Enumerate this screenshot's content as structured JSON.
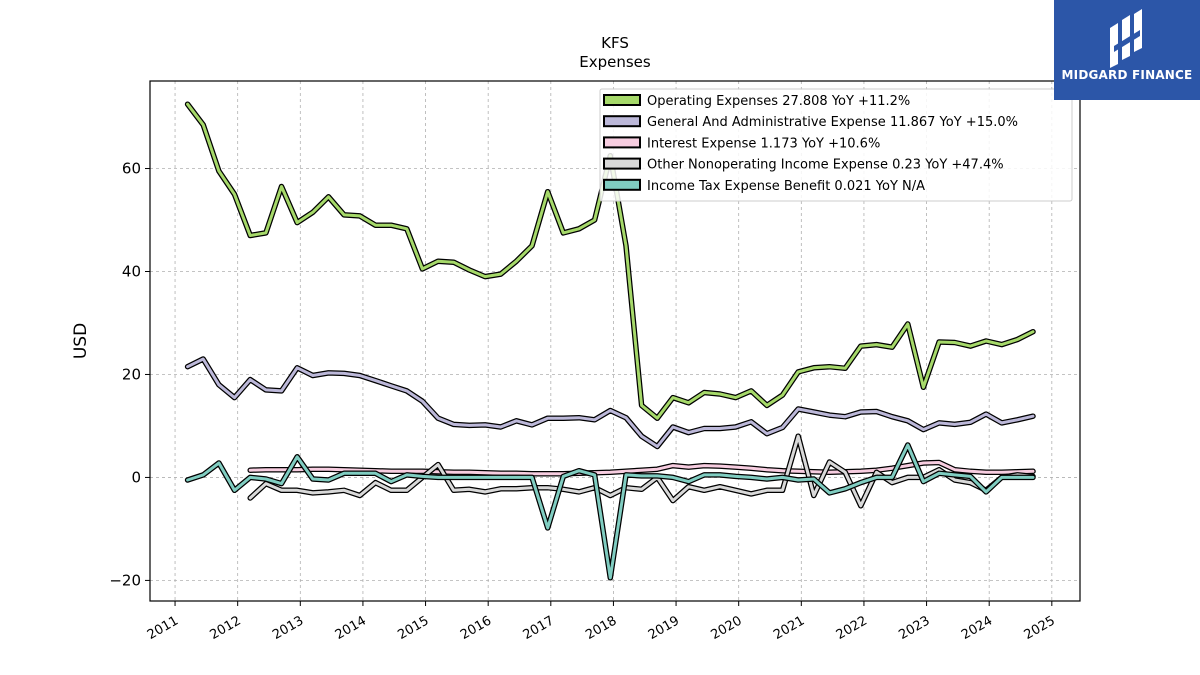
{
  "chart_data": {
    "type": "line",
    "title": "KFS",
    "subtitle": "Expenses",
    "ylabel": "USD",
    "xlabel": "",
    "ylim": [
      -24,
      77
    ],
    "xlim": [
      2010.6,
      2025.45
    ],
    "yticks": [
      -20,
      0,
      20,
      40,
      60
    ],
    "ytick_labels": [
      "−20",
      "0",
      "20",
      "40",
      "60"
    ],
    "xticks": [
      2011,
      2012,
      2013,
      2014,
      2015,
      2016,
      2017,
      2018,
      2019,
      2020,
      2021,
      2022,
      2023,
      2024,
      2025
    ],
    "xtick_labels": [
      "2011",
      "2012",
      "2013",
      "2014",
      "2015",
      "2016",
      "2017",
      "2018",
      "2019",
      "2020",
      "2021",
      "2022",
      "2023",
      "2024",
      "2025"
    ],
    "grid": true,
    "legend_position": "top-right",
    "series": [
      {
        "name": "Operating Expenses",
        "legend": "Operating Expenses  27.808 YoY +11.2%",
        "color": "#a6d96a",
        "points": [
          [
            2011.2,
            72.5
          ],
          [
            2011.45,
            68.5
          ],
          [
            2011.7,
            59.5
          ],
          [
            2011.95,
            55
          ],
          [
            2012.2,
            47
          ],
          [
            2012.45,
            47.5
          ],
          [
            2012.7,
            56.5
          ],
          [
            2012.95,
            49.5
          ],
          [
            2013.2,
            51.5
          ],
          [
            2013.45,
            54.5
          ],
          [
            2013.7,
            51
          ],
          [
            2013.95,
            50.8
          ],
          [
            2014.2,
            49
          ],
          [
            2014.45,
            49
          ],
          [
            2014.7,
            48.3
          ],
          [
            2014.95,
            40.5
          ],
          [
            2015.2,
            42
          ],
          [
            2015.45,
            41.8
          ],
          [
            2015.7,
            40.3
          ],
          [
            2015.95,
            39
          ],
          [
            2016.2,
            39.5
          ],
          [
            2016.45,
            42
          ],
          [
            2016.7,
            45
          ],
          [
            2016.95,
            55.5
          ],
          [
            2017.2,
            47.5
          ],
          [
            2017.45,
            48.3
          ],
          [
            2017.7,
            50
          ],
          [
            2017.95,
            62.5
          ],
          [
            2018.2,
            45
          ],
          [
            2018.45,
            14
          ],
          [
            2018.7,
            11.5
          ],
          [
            2018.95,
            15.5
          ],
          [
            2019.2,
            14.5
          ],
          [
            2019.45,
            16.5
          ],
          [
            2019.7,
            16.2
          ],
          [
            2019.95,
            15.5
          ],
          [
            2020.2,
            16.8
          ],
          [
            2020.45,
            14
          ],
          [
            2020.7,
            16
          ],
          [
            2020.95,
            20.5
          ],
          [
            2021.2,
            21.3
          ],
          [
            2021.45,
            21.5
          ],
          [
            2021.7,
            21.2
          ],
          [
            2021.95,
            25.5
          ],
          [
            2022.2,
            25.8
          ],
          [
            2022.45,
            25.3
          ],
          [
            2022.7,
            29.8
          ],
          [
            2022.95,
            17.5
          ],
          [
            2023.2,
            26.3
          ],
          [
            2023.45,
            26.2
          ],
          [
            2023.7,
            25.5
          ],
          [
            2023.95,
            26.5
          ],
          [
            2024.2,
            25.8
          ],
          [
            2024.45,
            26.8
          ],
          [
            2024.7,
            28.3
          ]
        ]
      },
      {
        "name": "General And Administrative Expense",
        "legend": "General And Administrative Expense  11.867 YoY +15.0%",
        "color": "#bcb8d9",
        "points": [
          [
            2011.2,
            21.5
          ],
          [
            2011.45,
            23
          ],
          [
            2011.7,
            18
          ],
          [
            2011.95,
            15.5
          ],
          [
            2012.2,
            19
          ],
          [
            2012.45,
            17
          ],
          [
            2012.7,
            16.8
          ],
          [
            2012.95,
            21.3
          ],
          [
            2013.2,
            19.8
          ],
          [
            2013.45,
            20.3
          ],
          [
            2013.7,
            20.2
          ],
          [
            2013.95,
            19.8
          ],
          [
            2014.2,
            18.8
          ],
          [
            2014.45,
            17.8
          ],
          [
            2014.7,
            16.8
          ],
          [
            2014.95,
            14.8
          ],
          [
            2015.2,
            11.5
          ],
          [
            2015.45,
            10.3
          ],
          [
            2015.7,
            10.1
          ],
          [
            2015.95,
            10.2
          ],
          [
            2016.2,
            9.8
          ],
          [
            2016.45,
            11
          ],
          [
            2016.7,
            10.2
          ],
          [
            2016.95,
            11.5
          ],
          [
            2017.2,
            11.5
          ],
          [
            2017.45,
            11.6
          ],
          [
            2017.7,
            11.2
          ],
          [
            2017.95,
            13
          ],
          [
            2018.2,
            11.6
          ],
          [
            2018.45,
            8
          ],
          [
            2018.7,
            6
          ],
          [
            2018.95,
            9.8
          ],
          [
            2019.2,
            8.7
          ],
          [
            2019.45,
            9.5
          ],
          [
            2019.7,
            9.5
          ],
          [
            2019.95,
            9.8
          ],
          [
            2020.2,
            10.8
          ],
          [
            2020.45,
            8.5
          ],
          [
            2020.7,
            9.7
          ],
          [
            2020.95,
            13.3
          ],
          [
            2021.2,
            12.7
          ],
          [
            2021.45,
            12.1
          ],
          [
            2021.7,
            11.8
          ],
          [
            2021.95,
            12.7
          ],
          [
            2022.2,
            12.8
          ],
          [
            2022.45,
            11.8
          ],
          [
            2022.7,
            11
          ],
          [
            2022.95,
            9.3
          ],
          [
            2023.2,
            10.6
          ],
          [
            2023.45,
            10.3
          ],
          [
            2023.7,
            10.7
          ],
          [
            2023.95,
            12.3
          ],
          [
            2024.2,
            10.6
          ],
          [
            2024.45,
            11.2
          ],
          [
            2024.7,
            11.9
          ]
        ]
      },
      {
        "name": "Interest Expense",
        "legend": "Interest Expense  1.173 YoY +10.6%",
        "color": "#f7cde0",
        "points": [
          [
            2012.2,
            1.4
          ],
          [
            2012.45,
            1.5
          ],
          [
            2012.7,
            1.5
          ],
          [
            2012.95,
            1.5
          ],
          [
            2013.2,
            1.6
          ],
          [
            2013.45,
            1.6
          ],
          [
            2013.7,
            1.5
          ],
          [
            2013.95,
            1.4
          ],
          [
            2014.2,
            1.3
          ],
          [
            2014.45,
            1.2
          ],
          [
            2014.7,
            1.2
          ],
          [
            2014.95,
            1.2
          ],
          [
            2015.2,
            1.1
          ],
          [
            2015.45,
            1
          ],
          [
            2015.7,
            1
          ],
          [
            2015.95,
            0.9
          ],
          [
            2016.2,
            0.8
          ],
          [
            2016.45,
            0.8
          ],
          [
            2016.7,
            0.7
          ],
          [
            2016.95,
            0.7
          ],
          [
            2017.2,
            0.7
          ],
          [
            2017.45,
            0.8
          ],
          [
            2017.7,
            0.9
          ],
          [
            2017.95,
            1
          ],
          [
            2018.2,
            1.2
          ],
          [
            2018.45,
            1.4
          ],
          [
            2018.7,
            1.6
          ],
          [
            2018.95,
            2.3
          ],
          [
            2019.2,
            2
          ],
          [
            2019.45,
            2.3
          ],
          [
            2019.7,
            2.2
          ],
          [
            2019.95,
            2
          ],
          [
            2020.2,
            1.8
          ],
          [
            2020.45,
            1.5
          ],
          [
            2020.7,
            1.3
          ],
          [
            2020.95,
            1.2
          ],
          [
            2021.2,
            1.1
          ],
          [
            2021.45,
            1
          ],
          [
            2021.7,
            1.1
          ],
          [
            2021.95,
            1.2
          ],
          [
            2022.2,
            1.4
          ],
          [
            2022.45,
            1.8
          ],
          [
            2022.7,
            2.3
          ],
          [
            2022.95,
            2.8
          ],
          [
            2023.2,
            2.9
          ],
          [
            2023.45,
            1.5
          ],
          [
            2023.7,
            1.2
          ],
          [
            2023.95,
            1
          ],
          [
            2024.2,
            1
          ],
          [
            2024.45,
            1.1
          ],
          [
            2024.7,
            1.2
          ]
        ]
      },
      {
        "name": "Other Nonoperating Income Expense",
        "legend": "Other Nonoperating Income Expense  0.23 YoY +47.4%",
        "color": "#d9d9d9",
        "points": [
          [
            2012.2,
            -4
          ],
          [
            2012.45,
            -1.2
          ],
          [
            2012.7,
            -2.5
          ],
          [
            2012.95,
            -2.5
          ],
          [
            2013.2,
            -3
          ],
          [
            2013.45,
            -2.8
          ],
          [
            2013.7,
            -2.5
          ],
          [
            2013.95,
            -3.5
          ],
          [
            2014.2,
            -1
          ],
          [
            2014.45,
            -2.5
          ],
          [
            2014.7,
            -2.5
          ],
          [
            2014.95,
            0
          ],
          [
            2015.2,
            2.5
          ],
          [
            2015.45,
            -2.5
          ],
          [
            2015.7,
            -2.3
          ],
          [
            2015.95,
            -2.8
          ],
          [
            2016.2,
            -2.2
          ],
          [
            2016.45,
            -2.2
          ],
          [
            2016.7,
            -2
          ],
          [
            2016.95,
            -2
          ],
          [
            2017.2,
            -2.3
          ],
          [
            2017.45,
            -2.8
          ],
          [
            2017.7,
            -2
          ],
          [
            2017.95,
            -3.5
          ],
          [
            2018.2,
            -2
          ],
          [
            2018.45,
            -2.3
          ],
          [
            2018.7,
            0
          ],
          [
            2018.95,
            -4.5
          ],
          [
            2019.2,
            -1.8
          ],
          [
            2019.45,
            -2.5
          ],
          [
            2019.7,
            -1.8
          ],
          [
            2019.95,
            -2.5
          ],
          [
            2020.2,
            -3.2
          ],
          [
            2020.45,
            -2.5
          ],
          [
            2020.7,
            -2.5
          ],
          [
            2020.95,
            8
          ],
          [
            2021.2,
            -3.5
          ],
          [
            2021.45,
            3
          ],
          [
            2021.7,
            1
          ],
          [
            2021.95,
            -5.5
          ],
          [
            2022.2,
            1
          ],
          [
            2022.45,
            -1
          ],
          [
            2022.7,
            0
          ],
          [
            2022.95,
            0
          ],
          [
            2023.2,
            1.5
          ],
          [
            2023.45,
            -0.5
          ],
          [
            2023.7,
            -1
          ],
          [
            2023.95,
            -2.5
          ],
          [
            2024.2,
            0
          ],
          [
            2024.45,
            0.5
          ],
          [
            2024.7,
            0.2
          ]
        ]
      },
      {
        "name": "Income Tax Expense Benefit",
        "legend": "Income Tax Expense Benefit  0.021 YoY N/A",
        "color": "#80cdc1",
        "points": [
          [
            2011.2,
            -0.5
          ],
          [
            2011.45,
            0.5
          ],
          [
            2011.7,
            2.8
          ],
          [
            2011.95,
            -2.5
          ],
          [
            2012.2,
            0
          ],
          [
            2012.45,
            -0.3
          ],
          [
            2012.7,
            -1.2
          ],
          [
            2012.95,
            4
          ],
          [
            2013.2,
            -0.3
          ],
          [
            2013.45,
            -0.5
          ],
          [
            2013.7,
            0.8
          ],
          [
            2013.95,
            0.8
          ],
          [
            2014.2,
            0.8
          ],
          [
            2014.45,
            -0.8
          ],
          [
            2014.7,
            0.5
          ],
          [
            2014.95,
            0.2
          ],
          [
            2015.2,
            0
          ],
          [
            2015.45,
            0
          ],
          [
            2015.7,
            0
          ],
          [
            2015.95,
            0
          ],
          [
            2016.2,
            0
          ],
          [
            2016.45,
            0
          ],
          [
            2016.7,
            0
          ],
          [
            2016.95,
            -9.8
          ],
          [
            2017.2,
            0.2
          ],
          [
            2017.45,
            1.3
          ],
          [
            2017.7,
            0.5
          ],
          [
            2017.95,
            -19.5
          ],
          [
            2018.2,
            0.5
          ],
          [
            2018.45,
            0.3
          ],
          [
            2018.7,
            0.3
          ],
          [
            2018.95,
            0
          ],
          [
            2019.2,
            -0.8
          ],
          [
            2019.45,
            0.5
          ],
          [
            2019.7,
            0.5
          ],
          [
            2019.95,
            0.2
          ],
          [
            2020.2,
            0
          ],
          [
            2020.45,
            -0.3
          ],
          [
            2020.7,
            0
          ],
          [
            2020.95,
            -0.5
          ],
          [
            2021.2,
            -0.3
          ],
          [
            2021.45,
            -3
          ],
          [
            2021.7,
            -2.2
          ],
          [
            2021.95,
            -1
          ],
          [
            2022.2,
            0
          ],
          [
            2022.45,
            0
          ],
          [
            2022.7,
            6.3
          ],
          [
            2022.95,
            -0.8
          ],
          [
            2023.2,
            0.8
          ],
          [
            2023.45,
            0.5
          ],
          [
            2023.7,
            0.2
          ],
          [
            2023.95,
            -2.8
          ],
          [
            2024.2,
            0
          ],
          [
            2024.45,
            0
          ],
          [
            2024.7,
            0
          ]
        ]
      }
    ]
  },
  "logo": {
    "text": "MIDGARD FINANCE",
    "background": "#2c56a8",
    "foreground": "#ffffff"
  }
}
